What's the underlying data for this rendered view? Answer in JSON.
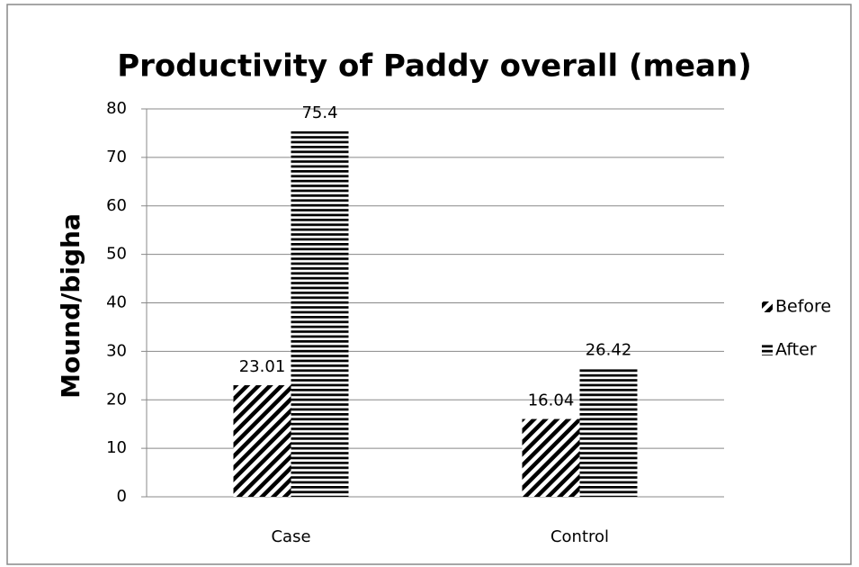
{
  "chart_data": {
    "type": "bar",
    "title": "Productivity of Paddy overall (mean)",
    "y_label": "Mound/bigha",
    "categories": [
      "Case",
      "Control"
    ],
    "series": [
      {
        "name": "Before",
        "color": "#000000",
        "pattern": "diagonal",
        "values": [
          23.01,
          16.04
        ]
      },
      {
        "name": "After",
        "color": "#000000",
        "pattern": "horizontal",
        "values": [
          75.4,
          26.42
        ]
      }
    ],
    "ylim": [
      0,
      80
    ],
    "yticks": [
      0,
      10,
      20,
      30,
      40,
      50,
      60,
      70,
      80
    ],
    "grid": true,
    "legend": "right"
  }
}
